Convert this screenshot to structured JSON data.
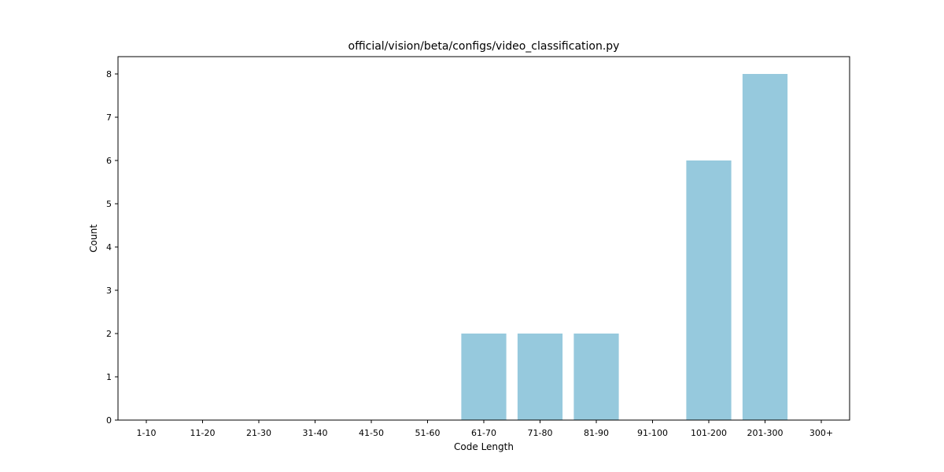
{
  "chart_data": {
    "type": "bar",
    "title": "official/vision/beta/configs/video_classification.py",
    "xlabel": "Code Length",
    "ylabel": "Count",
    "categories": [
      "1-10",
      "11-20",
      "21-30",
      "31-40",
      "41-50",
      "51-60",
      "61-70",
      "71-80",
      "81-90",
      "91-100",
      "101-200",
      "201-300",
      "300+"
    ],
    "values": [
      0,
      0,
      0,
      0,
      0,
      0,
      2,
      2,
      2,
      0,
      6,
      8,
      0
    ],
    "ylim": [
      0,
      8.4
    ],
    "yticks": [
      "0",
      "1",
      "2",
      "3",
      "4",
      "5",
      "6",
      "7",
      "8"
    ],
    "bar_color": "#96c9dd",
    "grid": false,
    "legend": "none"
  }
}
